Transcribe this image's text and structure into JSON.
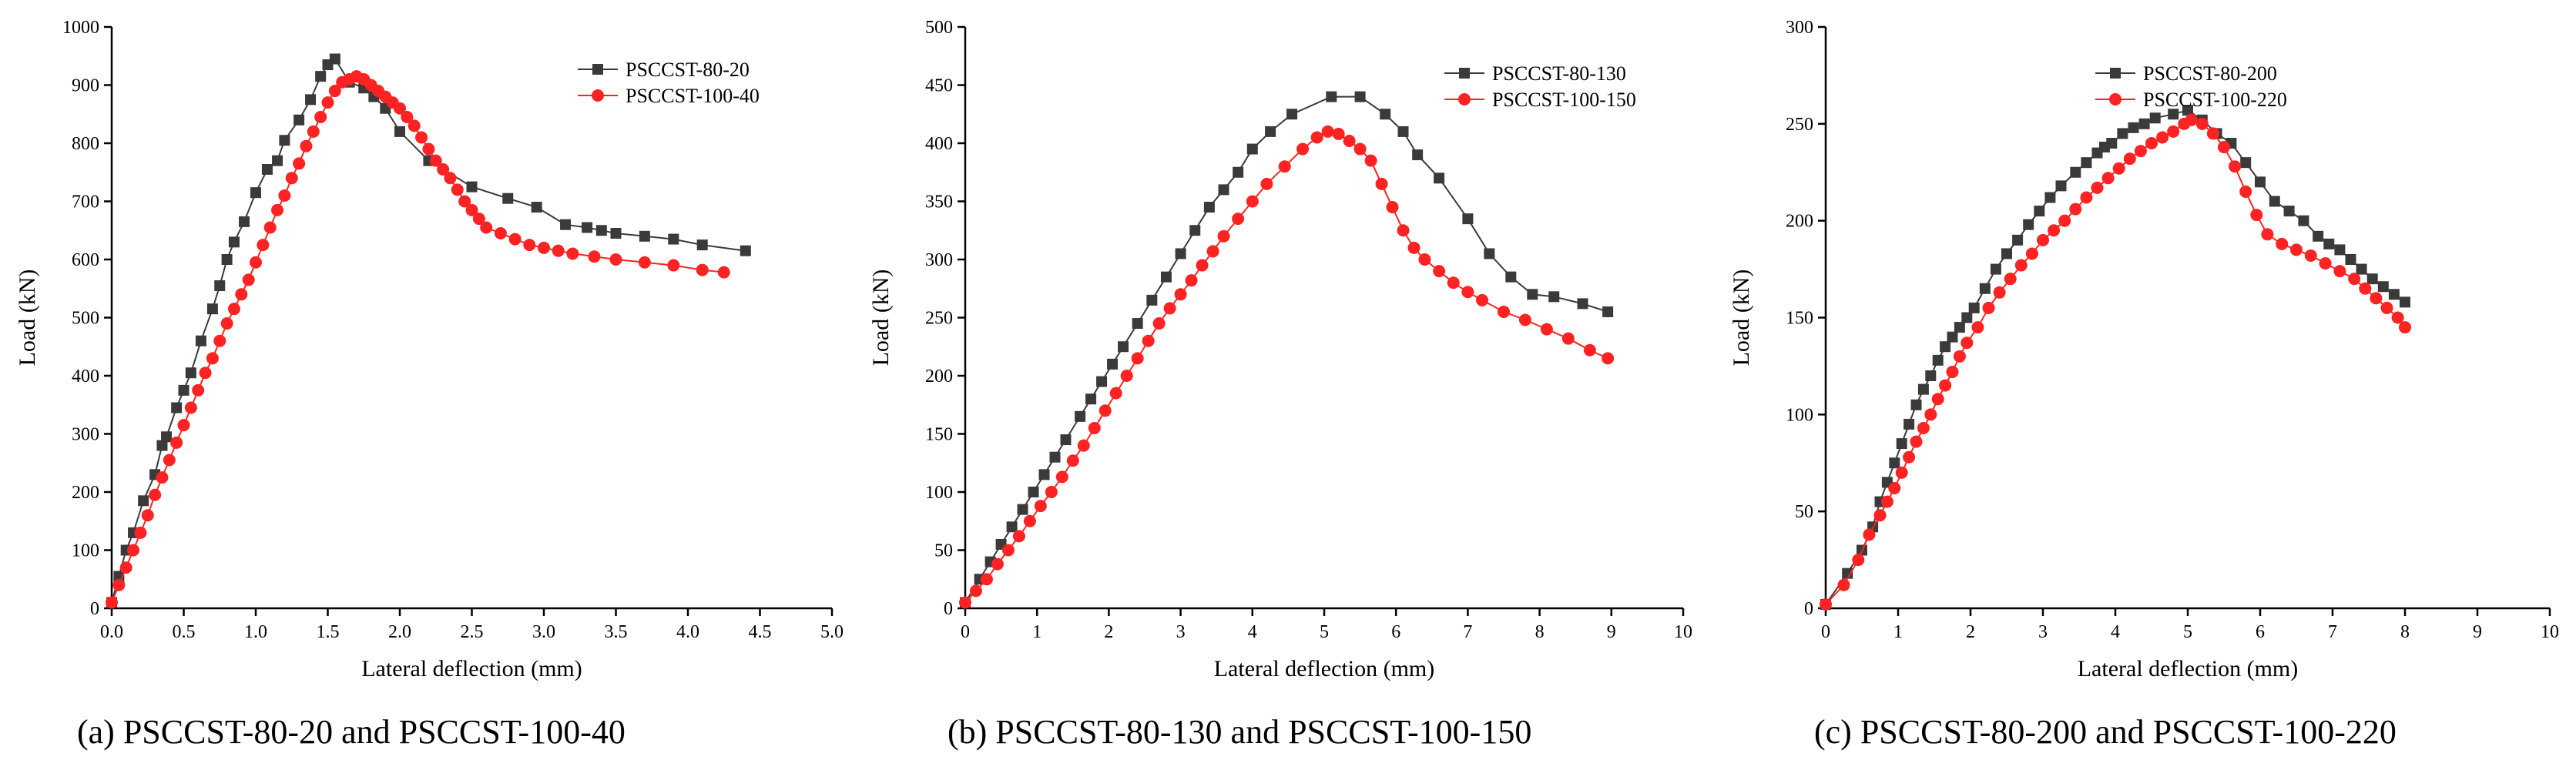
{
  "figure": {
    "captions": [
      "(a) PSCCST-80-20 and PSCCST-100-40",
      "(b) PSCCST-80-130 and PSCCST-100-150",
      "(c) PSCCST-80-200 and PSCCST-100-220"
    ]
  },
  "colors": {
    "series1": "#3a3a3a",
    "series2": "#ff2222",
    "axis": "#000000"
  },
  "chart_data": [
    {
      "type": "line",
      "title": "",
      "xlabel": "Lateral deflection (mm)",
      "ylabel": "Load (kN)",
      "xlim": [
        0,
        5.0
      ],
      "ylim": [
        0,
        1000
      ],
      "xticks": [
        0.0,
        0.5,
        1.0,
        1.5,
        2.0,
        2.5,
        3.0,
        3.5,
        4.0,
        4.5,
        5.0
      ],
      "xtick_labels": [
        "0.0",
        "0.5",
        "1.0",
        "1.5",
        "2.0",
        "2.5",
        "3.0",
        "3.5",
        "4.0",
        "4.5",
        "5.0"
      ],
      "yticks": [
        0,
        100,
        200,
        300,
        400,
        500,
        600,
        700,
        800,
        900,
        1000
      ],
      "ytick_labels": [
        "0",
        "100",
        "200",
        "300",
        "400",
        "500",
        "600",
        "700",
        "800",
        "900",
        "1000"
      ],
      "grid": false,
      "legend_position": "top-right",
      "series": [
        {
          "name": "PSCCST-80-20",
          "marker": "square",
          "x": [
            0.0,
            0.05,
            0.1,
            0.15,
            0.22,
            0.3,
            0.35,
            0.38,
            0.45,
            0.5,
            0.55,
            0.62,
            0.7,
            0.75,
            0.8,
            0.85,
            0.92,
            1.0,
            1.08,
            1.15,
            1.2,
            1.3,
            1.38,
            1.45,
            1.5,
            1.55,
            1.65,
            1.75,
            1.82,
            1.9,
            2.0,
            2.2,
            2.5,
            2.75,
            2.95,
            3.15,
            3.3,
            3.4,
            3.5,
            3.7,
            3.9,
            4.1,
            4.4
          ],
          "y": [
            10,
            55,
            100,
            130,
            185,
            230,
            280,
            295,
            345,
            375,
            405,
            460,
            515,
            555,
            600,
            630,
            665,
            715,
            755,
            770,
            805,
            840,
            875,
            915,
            935,
            945,
            905,
            895,
            880,
            860,
            820,
            770,
            725,
            705,
            690,
            660,
            655,
            650,
            645,
            640,
            635,
            625,
            615
          ]
        },
        {
          "name": "PSCCST-100-40",
          "marker": "circle",
          "x": [
            0.0,
            0.05,
            0.1,
            0.15,
            0.2,
            0.25,
            0.3,
            0.35,
            0.4,
            0.45,
            0.5,
            0.55,
            0.6,
            0.65,
            0.7,
            0.75,
            0.8,
            0.85,
            0.9,
            0.95,
            1.0,
            1.05,
            1.1,
            1.15,
            1.2,
            1.25,
            1.3,
            1.35,
            1.4,
            1.45,
            1.5,
            1.55,
            1.6,
            1.65,
            1.7,
            1.75,
            1.8,
            1.85,
            1.9,
            1.95,
            2.0,
            2.05,
            2.1,
            2.15,
            2.2,
            2.25,
            2.3,
            2.35,
            2.4,
            2.45,
            2.5,
            2.55,
            2.6,
            2.7,
            2.8,
            2.9,
            3.0,
            3.1,
            3.2,
            3.35,
            3.5,
            3.7,
            3.9,
            4.1,
            4.25
          ],
          "y": [
            10,
            40,
            70,
            100,
            130,
            160,
            195,
            225,
            255,
            285,
            315,
            345,
            375,
            405,
            430,
            460,
            490,
            515,
            540,
            565,
            595,
            625,
            655,
            685,
            710,
            740,
            765,
            795,
            820,
            845,
            870,
            890,
            905,
            910,
            915,
            910,
            900,
            890,
            880,
            870,
            860,
            845,
            830,
            810,
            790,
            770,
            755,
            740,
            720,
            700,
            685,
            670,
            655,
            645,
            635,
            625,
            620,
            615,
            610,
            605,
            600,
            595,
            590,
            582,
            578
          ]
        }
      ]
    },
    {
      "type": "line",
      "title": "",
      "xlabel": "Lateral deflection (mm)",
      "ylabel": "Load (kN)",
      "xlim": [
        0,
        10
      ],
      "ylim": [
        0,
        500
      ],
      "xticks": [
        0,
        1,
        2,
        3,
        4,
        5,
        6,
        7,
        8,
        9,
        10
      ],
      "xtick_labels": [
        "0",
        "1",
        "2",
        "3",
        "4",
        "5",
        "6",
        "7",
        "8",
        "9",
        "10"
      ],
      "yticks": [
        0,
        50,
        100,
        150,
        200,
        250,
        300,
        350,
        400,
        450,
        500
      ],
      "ytick_labels": [
        "0",
        "50",
        "100",
        "150",
        "200",
        "250",
        "300",
        "350",
        "400",
        "450",
        "500"
      ],
      "grid": false,
      "legend_position": "top-right",
      "series": [
        {
          "name": "PSCCST-80-130",
          "marker": "square",
          "x": [
            0.0,
            0.2,
            0.35,
            0.5,
            0.65,
            0.8,
            0.95,
            1.1,
            1.25,
            1.4,
            1.6,
            1.75,
            1.9,
            2.05,
            2.2,
            2.4,
            2.6,
            2.8,
            3.0,
            3.2,
            3.4,
            3.6,
            3.8,
            4.0,
            4.25,
            4.55,
            5.1,
            5.5,
            5.85,
            6.1,
            6.3,
            6.6,
            7.0,
            7.3,
            7.6,
            7.9,
            8.2,
            8.6,
            8.95
          ],
          "y": [
            5,
            25,
            40,
            55,
            70,
            85,
            100,
            115,
            130,
            145,
            165,
            180,
            195,
            210,
            225,
            245,
            265,
            285,
            305,
            325,
            345,
            360,
            375,
            395,
            410,
            425,
            440,
            440,
            425,
            410,
            390,
            370,
            335,
            305,
            285,
            270,
            268,
            262,
            255
          ]
        },
        {
          "name": "PSCCST-100-150",
          "marker": "circle",
          "x": [
            0.0,
            0.15,
            0.3,
            0.45,
            0.6,
            0.75,
            0.9,
            1.05,
            1.2,
            1.35,
            1.5,
            1.65,
            1.8,
            1.95,
            2.1,
            2.25,
            2.4,
            2.55,
            2.7,
            2.85,
            3.0,
            3.15,
            3.3,
            3.45,
            3.6,
            3.8,
            4.0,
            4.2,
            4.45,
            4.7,
            4.9,
            5.05,
            5.2,
            5.35,
            5.5,
            5.65,
            5.8,
            5.95,
            6.1,
            6.25,
            6.4,
            6.6,
            6.8,
            7.0,
            7.2,
            7.5,
            7.8,
            8.1,
            8.4,
            8.7,
            8.95
          ],
          "y": [
            5,
            15,
            25,
            38,
            50,
            62,
            75,
            88,
            100,
            113,
            127,
            140,
            155,
            170,
            185,
            200,
            215,
            230,
            245,
            258,
            270,
            282,
            295,
            307,
            320,
            335,
            350,
            365,
            380,
            395,
            405,
            410,
            408,
            402,
            395,
            385,
            365,
            345,
            325,
            310,
            300,
            290,
            280,
            272,
            265,
            255,
            248,
            240,
            232,
            222,
            215
          ]
        }
      ]
    },
    {
      "type": "line",
      "title": "",
      "xlabel": "Lateral deflection (mm)",
      "ylabel": "Load (kN)",
      "xlim": [
        0,
        10
      ],
      "ylim": [
        0,
        300
      ],
      "xticks": [
        0,
        1,
        2,
        3,
        4,
        5,
        6,
        7,
        8,
        9,
        10
      ],
      "xtick_labels": [
        "0",
        "1",
        "2",
        "3",
        "4",
        "5",
        "6",
        "7",
        "8",
        "9",
        "10"
      ],
      "yticks": [
        0,
        50,
        100,
        150,
        200,
        250,
        300
      ],
      "ytick_labels": [
        "0",
        "50",
        "100",
        "150",
        "200",
        "250",
        "300"
      ],
      "grid": false,
      "legend_position": "top-left",
      "series": [
        {
          "name": "PSCCST-80-200",
          "marker": "square",
          "x": [
            0.0,
            0.3,
            0.5,
            0.65,
            0.75,
            0.85,
            0.95,
            1.05,
            1.15,
            1.25,
            1.35,
            1.45,
            1.55,
            1.65,
            1.75,
            1.85,
            1.95,
            2.05,
            2.2,
            2.35,
            2.5,
            2.65,
            2.8,
            2.95,
            3.1,
            3.25,
            3.45,
            3.6,
            3.75,
            3.85,
            3.95,
            4.1,
            4.25,
            4.4,
            4.55,
            4.8,
            5.0,
            5.2,
            5.4,
            5.6,
            5.8,
            6.0,
            6.2,
            6.4,
            6.6,
            6.8,
            6.95,
            7.1,
            7.25,
            7.4,
            7.55,
            7.7,
            7.85,
            8.0
          ],
          "y": [
            2,
            18,
            30,
            42,
            55,
            65,
            75,
            85,
            95,
            105,
            113,
            120,
            128,
            135,
            140,
            145,
            150,
            155,
            165,
            175,
            183,
            190,
            198,
            205,
            212,
            218,
            225,
            230,
            235,
            238,
            240,
            245,
            248,
            250,
            253,
            255,
            257,
            252,
            245,
            240,
            230,
            220,
            210,
            205,
            200,
            192,
            188,
            185,
            180,
            175,
            170,
            166,
            162,
            158
          ]
        },
        {
          "name": "PSCCST-100-220",
          "marker": "circle",
          "x": [
            0.0,
            0.25,
            0.45,
            0.6,
            0.75,
            0.85,
            0.95,
            1.05,
            1.15,
            1.25,
            1.35,
            1.45,
            1.55,
            1.65,
            1.75,
            1.85,
            1.95,
            2.1,
            2.25,
            2.4,
            2.55,
            2.7,
            2.85,
            3.0,
            3.15,
            3.3,
            3.45,
            3.6,
            3.75,
            3.9,
            4.05,
            4.2,
            4.35,
            4.5,
            4.65,
            4.8,
            4.95,
            5.05,
            5.2,
            5.35,
            5.5,
            5.65,
            5.8,
            5.95,
            6.1,
            6.3,
            6.5,
            6.7,
            6.9,
            7.1,
            7.3,
            7.45,
            7.6,
            7.75,
            7.9,
            8.0
          ],
          "y": [
            2,
            12,
            25,
            38,
            48,
            55,
            62,
            70,
            78,
            86,
            93,
            100,
            108,
            115,
            122,
            130,
            137,
            145,
            155,
            163,
            170,
            177,
            183,
            190,
            195,
            200,
            206,
            212,
            217,
            222,
            227,
            232,
            236,
            240,
            243,
            246,
            250,
            252,
            250,
            245,
            238,
            228,
            215,
            203,
            193,
            188,
            185,
            182,
            178,
            174,
            170,
            165,
            160,
            155,
            150,
            145
          ]
        }
      ]
    }
  ]
}
